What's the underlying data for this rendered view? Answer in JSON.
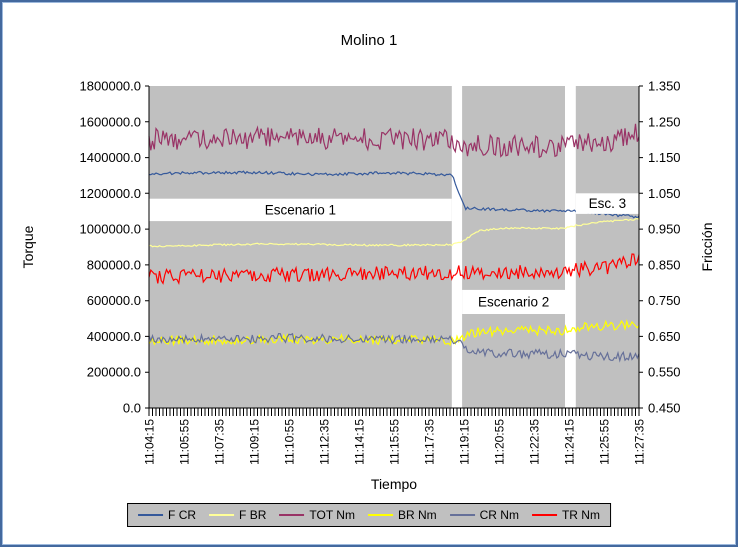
{
  "window": {
    "border_color": "#44699e"
  },
  "chart_data": {
    "type": "line",
    "title": "Molino 1",
    "xlabel": "Tiempo",
    "ylabel_left": "Torque",
    "ylabel_right": "Fricción",
    "plot_bg": "#c0c0c0",
    "grid": false,
    "legend_position": "bottom",
    "n_points": 281,
    "y_left": {
      "min": 0,
      "max": 1800000,
      "step": 200000,
      "tick_labels": [
        "1800000.0",
        "1600000.0",
        "1400000.0",
        "1200000.0",
        "1000000.0",
        "800000.0",
        "600000.0",
        "400000.0",
        "200000.0",
        "0.0"
      ]
    },
    "y_right": {
      "min": 0.45,
      "max": 1.35,
      "step": 0.1,
      "tick_labels": [
        "1.350",
        "1.250",
        "1.150",
        "1.050",
        "0.950",
        "0.850",
        "0.750",
        "0.650",
        "0.550",
        "0.450"
      ]
    },
    "x_tick_labels": [
      "11:04:15",
      "11:05:55",
      "11:07:35",
      "11:09:15",
      "11:10:55",
      "11:12:35",
      "11:14:15",
      "11:15:55",
      "11:17:35",
      "11:19:15",
      "11:20:55",
      "11:22:35",
      "11:24:15",
      "11:25:55",
      "11:27:35"
    ],
    "scenario_gaps": [
      [
        0.618,
        0.639
      ],
      [
        0.849,
        0.871
      ]
    ],
    "annotations": [
      {
        "text": "Escenario 1",
        "x0": 0.0,
        "x1": 0.618,
        "y_top": 1170000,
        "y_bottom": 1045000
      },
      {
        "text": "Escenario 2",
        "x0": 0.639,
        "x1": 0.849,
        "y_top": 660000,
        "y_bottom": 525000
      },
      {
        "text": "Esc. 3",
        "x0": 0.871,
        "x1": 1.0,
        "y_top": 1200000,
        "y_bottom": 1085000
      }
    ],
    "series": [
      {
        "name": "F CR",
        "axis": "right",
        "color": "#35599b",
        "noise": 0.004,
        "keypoints": [
          [
            0,
            1.105
          ],
          [
            0.2,
            1.109
          ],
          [
            0.35,
            1.103
          ],
          [
            0.5,
            1.107
          ],
          [
            0.618,
            1.102
          ],
          [
            0.63,
            1.06
          ],
          [
            0.645,
            1.008
          ],
          [
            0.75,
            1.004
          ],
          [
            0.849,
            0.999
          ],
          [
            0.871,
            1.002
          ],
          [
            0.93,
            0.992
          ],
          [
            1,
            0.984
          ]
        ]
      },
      {
        "name": "F BR",
        "axis": "right",
        "color": "#ffff99",
        "noise": 0.0025,
        "keypoints": [
          [
            0,
            0.902
          ],
          [
            0.25,
            0.909
          ],
          [
            0.45,
            0.905
          ],
          [
            0.618,
            0.906
          ],
          [
            0.64,
            0.916
          ],
          [
            0.67,
            0.944
          ],
          [
            0.72,
            0.953
          ],
          [
            0.849,
            0.952
          ],
          [
            0.871,
            0.96
          ],
          [
            0.93,
            0.971
          ],
          [
            1,
            0.978
          ]
        ]
      },
      {
        "name": "TOT Nm",
        "axis": "left",
        "color": "#993366",
        "noise": 62000,
        "keypoints": [
          [
            0,
            1500000
          ],
          [
            0.3,
            1510000
          ],
          [
            0.618,
            1500000
          ],
          [
            0.645,
            1468000
          ],
          [
            0.849,
            1462000
          ],
          [
            0.871,
            1485000
          ],
          [
            0.96,
            1495000
          ],
          [
            1,
            1545000
          ]
        ]
      },
      {
        "name": "BR Nm",
        "axis": "left",
        "color": "#ffff00",
        "noise": 26000,
        "keypoints": [
          [
            0,
            378000
          ],
          [
            0.3,
            385000
          ],
          [
            0.618,
            378000
          ],
          [
            0.64,
            398000
          ],
          [
            0.67,
            428000
          ],
          [
            0.849,
            433000
          ],
          [
            0.871,
            452000
          ],
          [
            1,
            468000
          ]
        ]
      },
      {
        "name": "CR Nm",
        "axis": "left",
        "color": "#667099",
        "noise": 26000,
        "keypoints": [
          [
            0,
            385000
          ],
          [
            0.3,
            392000
          ],
          [
            0.618,
            380000
          ],
          [
            0.64,
            345000
          ],
          [
            0.67,
            306000
          ],
          [
            0.849,
            300000
          ],
          [
            0.871,
            296000
          ],
          [
            0.95,
            287000
          ],
          [
            1,
            300000
          ]
        ]
      },
      {
        "name": "TR Nm",
        "axis": "left",
        "color": "#ff0000",
        "noise": 40000,
        "keypoints": [
          [
            0,
            735000
          ],
          [
            0.35,
            748000
          ],
          [
            0.618,
            756000
          ],
          [
            0.645,
            760000
          ],
          [
            0.849,
            763000
          ],
          [
            0.871,
            773000
          ],
          [
            0.96,
            795000
          ],
          [
            1,
            848000
          ]
        ]
      }
    ]
  }
}
